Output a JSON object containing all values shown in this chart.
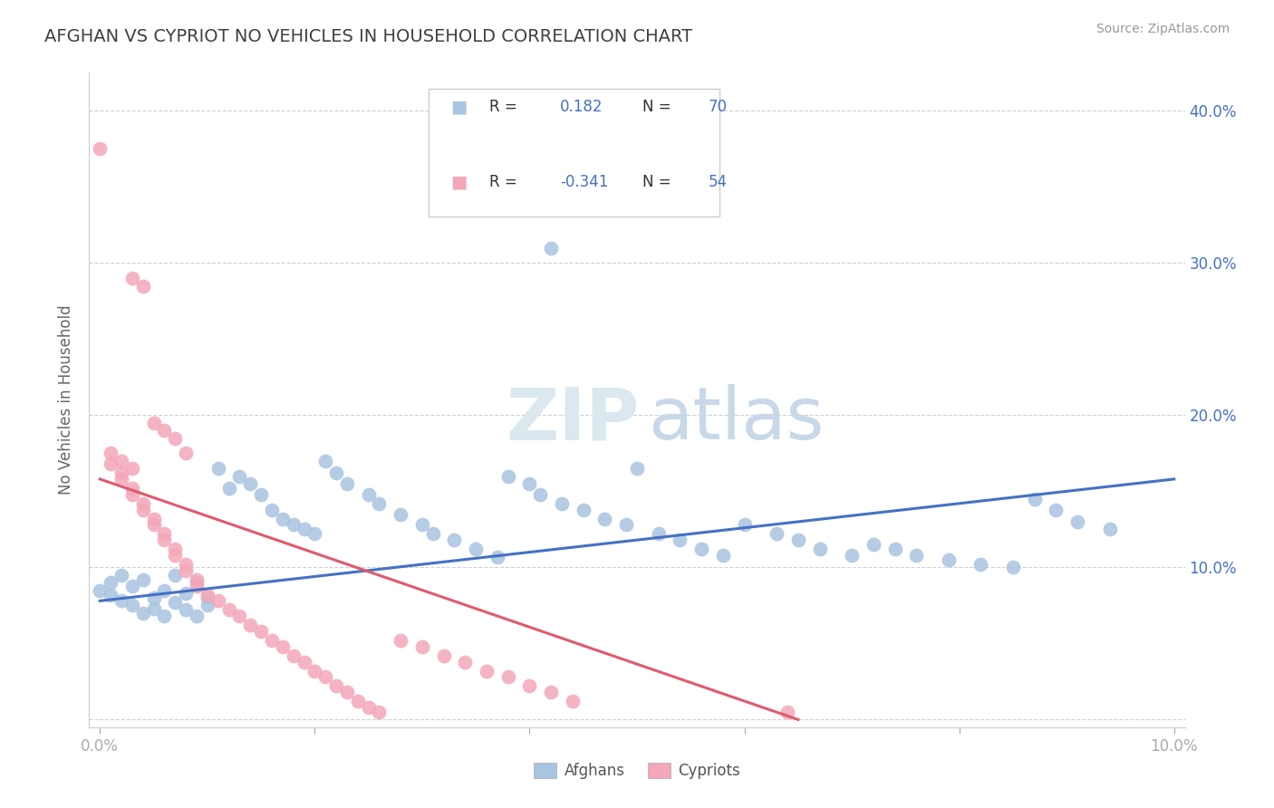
{
  "title": "AFGHAN VS CYPRIOT NO VEHICLES IN HOUSEHOLD CORRELATION CHART",
  "source": "Source: ZipAtlas.com",
  "ylabel": "No Vehicles in Household",
  "xlim": [
    -0.001,
    0.101
  ],
  "ylim": [
    -0.005,
    0.425
  ],
  "x_ticks": [
    0.0,
    0.02,
    0.04,
    0.06,
    0.08,
    0.1
  ],
  "x_tick_labels": [
    "0.0%",
    "",
    "",
    "",
    "",
    "10.0%"
  ],
  "y_ticks": [
    0.0,
    0.1,
    0.2,
    0.3,
    0.4
  ],
  "y_tick_labels_right": [
    "",
    "10.0%",
    "20.0%",
    "30.0%",
    "40.0%"
  ],
  "afghan_color": "#a8c4e0",
  "cypriot_color": "#f4a7b9",
  "afghan_line_color": "#4472c4",
  "cypriot_line_color": "#e05a6e",
  "legend_value_color": "#4472c4",
  "title_color": "#404040",
  "title_fontsize": 14,
  "R_afghan": 0.182,
  "N_afghan": 70,
  "R_cypriot": -0.341,
  "N_cypriot": 54,
  "afghan_line_x0": 0.0,
  "afghan_line_y0": 0.078,
  "afghan_line_x1": 0.1,
  "afghan_line_y1": 0.158,
  "cypriot_line_x0": 0.0,
  "cypriot_line_y0": 0.158,
  "cypriot_line_x1": 0.065,
  "cypriot_line_y1": 0.0,
  "afghan_x": [
    0.0,
    0.001,
    0.001,
    0.002,
    0.002,
    0.003,
    0.003,
    0.004,
    0.004,
    0.005,
    0.005,
    0.006,
    0.006,
    0.007,
    0.007,
    0.008,
    0.008,
    0.009,
    0.009,
    0.01,
    0.01,
    0.011,
    0.012,
    0.013,
    0.014,
    0.015,
    0.016,
    0.017,
    0.018,
    0.019,
    0.02,
    0.021,
    0.022,
    0.023,
    0.025,
    0.026,
    0.028,
    0.03,
    0.031,
    0.033,
    0.035,
    0.037,
    0.038,
    0.04,
    0.041,
    0.043,
    0.045,
    0.047,
    0.049,
    0.05,
    0.052,
    0.054,
    0.056,
    0.058,
    0.06,
    0.063,
    0.065,
    0.067,
    0.07,
    0.072,
    0.074,
    0.076,
    0.079,
    0.082,
    0.085,
    0.087,
    0.089,
    0.091,
    0.094,
    0.042
  ],
  "afghan_y": [
    0.085,
    0.082,
    0.09,
    0.078,
    0.095,
    0.075,
    0.088,
    0.07,
    0.092,
    0.08,
    0.073,
    0.085,
    0.068,
    0.077,
    0.095,
    0.072,
    0.083,
    0.068,
    0.09,
    0.075,
    0.08,
    0.165,
    0.152,
    0.16,
    0.155,
    0.148,
    0.138,
    0.132,
    0.128,
    0.125,
    0.122,
    0.17,
    0.162,
    0.155,
    0.148,
    0.142,
    0.135,
    0.128,
    0.122,
    0.118,
    0.112,
    0.107,
    0.16,
    0.155,
    0.148,
    0.142,
    0.138,
    0.132,
    0.128,
    0.165,
    0.122,
    0.118,
    0.112,
    0.108,
    0.128,
    0.122,
    0.118,
    0.112,
    0.108,
    0.115,
    0.112,
    0.108,
    0.105,
    0.102,
    0.1,
    0.145,
    0.138,
    0.13,
    0.125,
    0.31
  ],
  "cypriot_x": [
    0.0,
    0.001,
    0.001,
    0.002,
    0.002,
    0.003,
    0.003,
    0.004,
    0.004,
    0.005,
    0.005,
    0.006,
    0.006,
    0.007,
    0.007,
    0.008,
    0.008,
    0.009,
    0.009,
    0.01,
    0.011,
    0.012,
    0.013,
    0.014,
    0.015,
    0.016,
    0.017,
    0.018,
    0.019,
    0.02,
    0.021,
    0.022,
    0.023,
    0.024,
    0.025,
    0.026,
    0.028,
    0.03,
    0.032,
    0.034,
    0.036,
    0.038,
    0.04,
    0.042,
    0.044,
    0.003,
    0.004,
    0.005,
    0.006,
    0.007,
    0.008,
    0.002,
    0.003,
    0.064
  ],
  "cypriot_y": [
    0.375,
    0.175,
    0.168,
    0.162,
    0.158,
    0.152,
    0.148,
    0.142,
    0.138,
    0.132,
    0.128,
    0.122,
    0.118,
    0.112,
    0.108,
    0.102,
    0.098,
    0.092,
    0.088,
    0.082,
    0.078,
    0.072,
    0.068,
    0.062,
    0.058,
    0.052,
    0.048,
    0.042,
    0.038,
    0.032,
    0.028,
    0.022,
    0.018,
    0.012,
    0.008,
    0.005,
    0.052,
    0.048,
    0.042,
    0.038,
    0.032,
    0.028,
    0.022,
    0.018,
    0.012,
    0.29,
    0.285,
    0.195,
    0.19,
    0.185,
    0.175,
    0.17,
    0.165,
    0.005
  ]
}
